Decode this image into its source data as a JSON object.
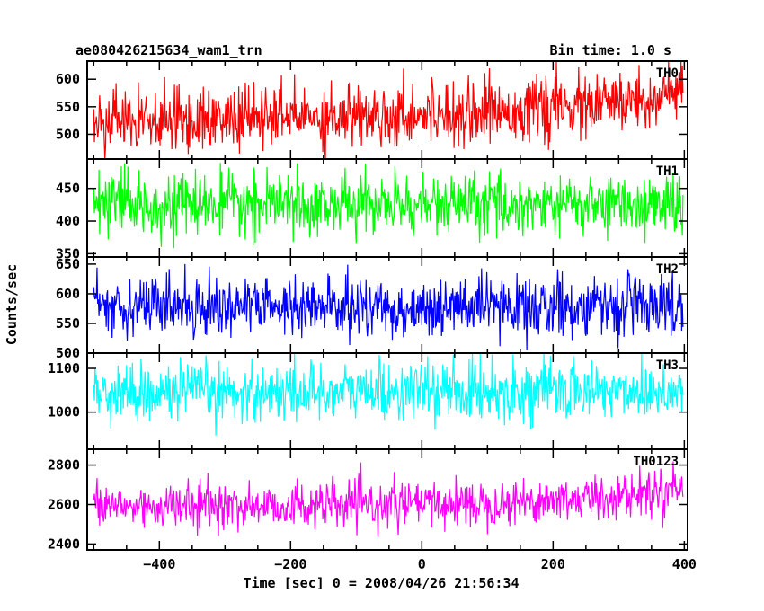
{
  "chart_data": {
    "type": "line",
    "title": "ae080426215634_wam1_trn",
    "subtitle": "Bin time: 1.0 s",
    "xlabel": "Time [sec] 0 = 2008/04/26 21:56:34",
    "ylabel": "Counts/sec",
    "xlim": [
      -510,
      405
    ],
    "x_ticks": [
      -400,
      -200,
      0,
      200,
      400
    ],
    "x_tick_labels": [
      "−400",
      "−200",
      "0",
      "200",
      "400"
    ],
    "bin_time": 1.0,
    "x_range": [
      -500,
      398
    ],
    "series": [
      {
        "name": "TH0",
        "color": "#ff0000",
        "ylim": [
          455,
          633
        ],
        "yticks": [
          500,
          550,
          600
        ],
        "level": [
          [
            -500,
            520
          ],
          [
            -300,
            528
          ],
          [
            -100,
            535
          ],
          [
            100,
            542
          ],
          [
            250,
            550
          ],
          [
            350,
            565
          ],
          [
            398,
            578
          ]
        ],
        "noise_amp": 30,
        "min": 455,
        "max": 633
      },
      {
        "name": "TH1",
        "color": "#00ff00",
        "ylim": [
          345,
          495
        ],
        "yticks": [
          350,
          400,
          450
        ],
        "level": [
          [
            -500,
            425
          ],
          [
            398,
            425
          ]
        ],
        "noise_amp": 24,
        "min": 350,
        "max": 492
      },
      {
        "name": "TH2",
        "color": "#0000ff",
        "ylim": [
          500,
          662
        ],
        "yticks": [
          500,
          550,
          600,
          650
        ],
        "level": [
          [
            -500,
            583
          ],
          [
            -200,
            578
          ],
          [
            0,
            575
          ],
          [
            398,
            582
          ]
        ],
        "noise_amp": 26,
        "min": 505,
        "max": 660
      },
      {
        "name": "TH3",
        "color": "#00ffff",
        "ylim": [
          915,
          1135
        ],
        "yticks": [
          1000,
          1100
        ],
        "level": [
          [
            -500,
            1045
          ],
          [
            398,
            1050
          ]
        ],
        "noise_amp": 35,
        "min": 918,
        "max": 1133
      },
      {
        "name": "TH0123",
        "color": "#ff00ff",
        "ylim": [
          2370,
          2880
        ],
        "yticks": [
          2400,
          2600,
          2800
        ],
        "level": [
          [
            -500,
            2590
          ],
          [
            -100,
            2595
          ],
          [
            100,
            2610
          ],
          [
            250,
            2630
          ],
          [
            350,
            2660
          ],
          [
            398,
            2700
          ]
        ],
        "noise_amp": 60,
        "min": 2380,
        "max": 2870
      }
    ]
  }
}
